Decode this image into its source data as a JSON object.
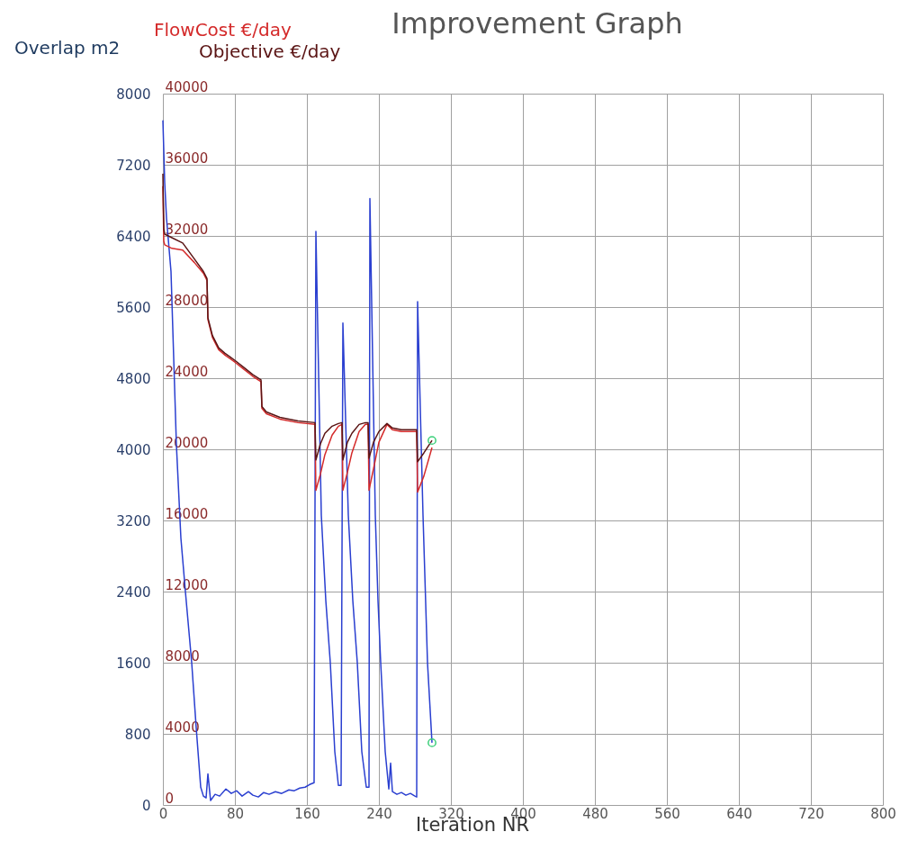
{
  "chart_data": {
    "type": "line",
    "title": "Improvement Graph",
    "xlabel": "Iteration NR",
    "ylabel": "Overlap m2",
    "xlim": [
      0,
      800
    ],
    "xticks": [
      0,
      80,
      160,
      240,
      320,
      400,
      480,
      560,
      640,
      720,
      800
    ],
    "ylim": [
      0,
      8000
    ],
    "yticks": [
      0,
      800,
      1600,
      2400,
      3200,
      4000,
      4800,
      5600,
      6400,
      7200,
      8000
    ],
    "y2lim": [
      0,
      40000
    ],
    "y2ticks": [
      0,
      4000,
      8000,
      12000,
      16000,
      20000,
      24000,
      28000,
      32000,
      36000,
      40000
    ],
    "grid": true,
    "legend": "top left",
    "line_style": "solid",
    "marker": "none",
    "series": [
      {
        "color": "#2a3fd0",
        "x": [
          0,
          2,
          4,
          9,
          15,
          20,
          25,
          32,
          37,
          42,
          45,
          48,
          50,
          53,
          58,
          63,
          70,
          76,
          82,
          88,
          95,
          100,
          106,
          112,
          118,
          125,
          132,
          140,
          146,
          152,
          158,
          163,
          168,
          170,
          176,
          181,
          186,
          191,
          195,
          198,
          200,
          206,
          211,
          216,
          221,
          226,
          229,
          230,
          236,
          239,
          242,
          247,
          251,
          253,
          255,
          260,
          265,
          270,
          275,
          280,
          282,
          283,
          289,
          294,
          299
        ],
        "values": [
          7700,
          7000,
          6600,
          6000,
          4050,
          3000,
          2400,
          1600,
          870,
          200,
          100,
          80,
          350,
          50,
          120,
          100,
          180,
          130,
          160,
          100,
          150,
          110,
          90,
          140,
          120,
          150,
          130,
          170,
          160,
          190,
          200,
          230,
          250,
          6450,
          3260,
          2300,
          1600,
          600,
          220,
          220,
          5420,
          3260,
          2300,
          1600,
          600,
          200,
          200,
          6820,
          3260,
          2300,
          1600,
          600,
          180,
          470,
          150,
          120,
          140,
          110,
          130,
          100,
          90,
          5660,
          3260,
          1600,
          700
        ]
      },
      {
        "name": "FlowCost €/day",
        "color": "#d42a2a",
        "axis": "y2",
        "x": [
          0,
          1,
          2,
          10,
          22,
          35,
          45,
          49,
          50,
          55,
          62,
          69,
          80,
          90,
          100,
          109,
          110,
          115,
          130,
          150,
          169,
          170,
          175,
          180,
          188,
          195,
          199,
          200,
          205,
          210,
          218,
          225,
          228,
          229,
          234,
          240,
          249,
          255,
          265,
          275,
          282,
          283,
          290,
          299
        ],
        "values": [
          34800,
          31700,
          31500,
          31300,
          31200,
          30500,
          29900,
          29500,
          27300,
          26300,
          25600,
          25300,
          24900,
          24500,
          24100,
          23800,
          22300,
          22000,
          21700,
          21500,
          21400,
          17700,
          18600,
          19700,
          20800,
          21300,
          21400,
          17700,
          18700,
          19800,
          21000,
          21400,
          21400,
          17700,
          18900,
          20400,
          21400,
          21100,
          21000,
          21000,
          21000,
          17600,
          18500,
          20100
        ]
      },
      {
        "name": "Objective  €/day",
        "color": "#5a1414",
        "axis": "y2",
        "x": [
          0,
          1,
          2,
          10,
          22,
          35,
          45,
          49,
          50,
          55,
          62,
          69,
          80,
          90,
          100,
          109,
          110,
          115,
          130,
          150,
          169,
          170,
          175,
          180,
          188,
          195,
          199,
          200,
          205,
          210,
          218,
          225,
          228,
          229,
          234,
          240,
          249,
          255,
          265,
          275,
          282,
          283,
          290,
          299
        ],
        "values": [
          35500,
          32400,
          32100,
          31900,
          31600,
          30700,
          30000,
          29600,
          27400,
          26400,
          25700,
          25400,
          25000,
          24600,
          24200,
          23900,
          22400,
          22100,
          21800,
          21600,
          21500,
          19400,
          20300,
          20900,
          21300,
          21450,
          21500,
          19400,
          20400,
          20900,
          21400,
          21500,
          21500,
          19500,
          20400,
          21000,
          21450,
          21200,
          21100,
          21100,
          21100,
          19300,
          19800,
          20500
        ]
      },
      {
        "type": "scatter",
        "marker": "circle",
        "color": "#3ccf7a",
        "x": [
          299
        ],
        "values": [
          700
        ]
      },
      {
        "type": "scatter",
        "marker": "circle",
        "color": "#3ccf7a",
        "axis": "y2",
        "x": [
          299
        ],
        "values": [
          20500
        ]
      }
    ]
  }
}
